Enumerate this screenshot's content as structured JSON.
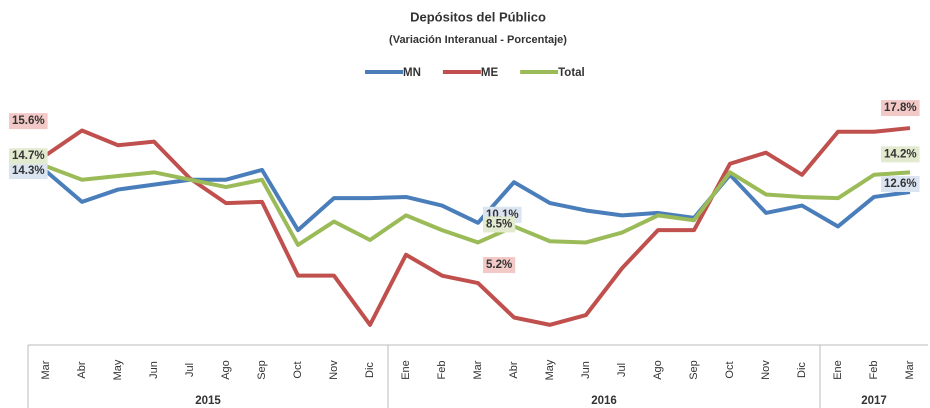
{
  "chart_data": {
    "type": "line",
    "title": "Depósitos del Público",
    "subtitle": "(Variación Interanual - Porcentaje)",
    "categories": [
      "Mar",
      "Abr",
      "May",
      "Jun",
      "Jul",
      "Ago",
      "Sep",
      "Oct",
      "Nov",
      "Dic",
      "Ene",
      "Feb",
      "Mar",
      "Abr",
      "May",
      "Jun",
      "Jul",
      "Ago",
      "Sep",
      "Oct",
      "Nov",
      "Dic",
      "Ene",
      "Feb",
      "Mar"
    ],
    "category_years": [
      "2015",
      "2015",
      "2015",
      "2015",
      "2015",
      "2015",
      "2015",
      "2015",
      "2015",
      "2015",
      "2016",
      "2016",
      "2016",
      "2016",
      "2016",
      "2016",
      "2016",
      "2016",
      "2016",
      "2016",
      "2016",
      "2016",
      "2017",
      "2017",
      "2017"
    ],
    "ylim": [
      0,
      20
    ],
    "series": [
      {
        "name": "MN",
        "color": "#4a7ebb",
        "values": [
          14.3,
          11.8,
          12.8,
          13.2,
          13.6,
          13.6,
          14.4,
          9.5,
          12.1,
          12.1,
          12.2,
          11.5,
          10.1,
          13.4,
          11.7,
          11.1,
          10.7,
          10.9,
          10.5,
          14.0,
          10.9,
          11.5,
          9.8,
          12.2,
          12.6
        ],
        "value_labels": [
          "14.3%",
          null,
          null,
          null,
          null,
          null,
          null,
          null,
          null,
          null,
          null,
          null,
          "10.1%",
          null,
          null,
          null,
          null,
          null,
          null,
          null,
          null,
          null,
          null,
          null,
          "12.6%"
        ]
      },
      {
        "name": "ME",
        "color": "#c0504d",
        "values": [
          15.6,
          17.6,
          16.4,
          16.7,
          13.7,
          11.7,
          11.8,
          5.8,
          5.8,
          1.8,
          7.5,
          5.8,
          5.2,
          2.4,
          1.8,
          2.6,
          6.4,
          9.5,
          9.5,
          14.9,
          15.8,
          14.0,
          17.5,
          17.5,
          17.8
        ],
        "value_labels": [
          "15.6%",
          null,
          null,
          null,
          null,
          null,
          null,
          null,
          null,
          null,
          null,
          null,
          "5.2%",
          null,
          null,
          null,
          null,
          null,
          null,
          null,
          null,
          null,
          null,
          null,
          "17.8%"
        ]
      },
      {
        "name": "Total",
        "color": "#9bbb59",
        "values": [
          14.7,
          13.6,
          13.9,
          14.2,
          13.6,
          13.0,
          13.6,
          8.3,
          10.2,
          8.7,
          10.7,
          9.5,
          8.5,
          9.8,
          8.6,
          8.5,
          9.3,
          10.7,
          10.3,
          14.2,
          12.4,
          12.2,
          12.1,
          14.0,
          14.2
        ],
        "value_labels": [
          "14.7%",
          null,
          null,
          null,
          null,
          null,
          null,
          null,
          null,
          null,
          null,
          null,
          "8.5%",
          null,
          null,
          null,
          null,
          null,
          null,
          null,
          null,
          null,
          null,
          null,
          "14.2%"
        ]
      }
    ]
  }
}
